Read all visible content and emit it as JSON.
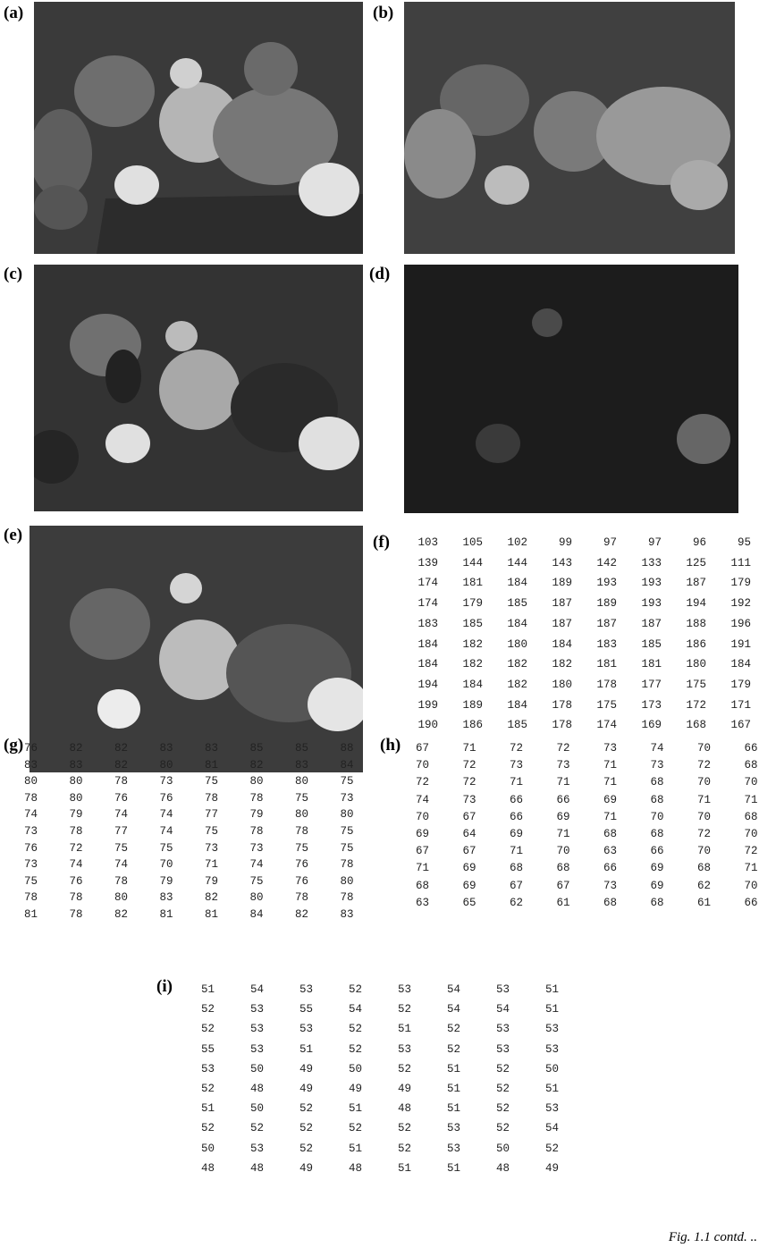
{
  "panels": [
    {
      "label": "(a)"
    },
    {
      "label": "(b)"
    },
    {
      "label": "(c)"
    },
    {
      "label": "(d)"
    },
    {
      "label": "(e)"
    },
    {
      "label": "(f)",
      "rows": [
        [
          103,
          105,
          102,
          99,
          97,
          97,
          96,
          95
        ],
        [
          139,
          144,
          144,
          143,
          142,
          133,
          125,
          111
        ],
        [
          174,
          181,
          184,
          189,
          193,
          193,
          187,
          179
        ],
        [
          174,
          179,
          185,
          187,
          189,
          193,
          194,
          192
        ],
        [
          183,
          185,
          184,
          187,
          187,
          187,
          188,
          196
        ],
        [
          184,
          182,
          180,
          184,
          183,
          185,
          186,
          191
        ],
        [
          184,
          182,
          182,
          182,
          181,
          181,
          180,
          184
        ],
        [
          194,
          184,
          182,
          180,
          178,
          177,
          175,
          179
        ],
        [
          199,
          189,
          184,
          178,
          175,
          173,
          172,
          171
        ],
        [
          190,
          186,
          185,
          178,
          174,
          169,
          168,
          167
        ]
      ]
    },
    {
      "label": "(g)",
      "rows": [
        [
          76,
          82,
          82,
          83,
          83,
          85,
          85,
          88
        ],
        [
          83,
          83,
          82,
          80,
          81,
          82,
          83,
          84
        ],
        [
          80,
          80,
          78,
          73,
          75,
          80,
          80,
          75
        ],
        [
          78,
          80,
          76,
          76,
          78,
          78,
          75,
          73
        ],
        [
          74,
          79,
          74,
          74,
          77,
          79,
          80,
          80
        ],
        [
          73,
          78,
          77,
          74,
          75,
          78,
          78,
          75
        ],
        [
          76,
          72,
          75,
          75,
          73,
          73,
          75,
          75
        ],
        [
          73,
          74,
          74,
          70,
          71,
          74,
          76,
          78
        ],
        [
          75,
          76,
          78,
          79,
          79,
          75,
          76,
          80
        ],
        [
          78,
          78,
          80,
          83,
          82,
          80,
          78,
          78
        ],
        [
          81,
          78,
          82,
          81,
          81,
          84,
          82,
          83
        ]
      ]
    },
    {
      "label": "(h)",
      "rows": [
        [
          67,
          71,
          72,
          72,
          73,
          74,
          70,
          66
        ],
        [
          70,
          72,
          73,
          73,
          71,
          73,
          72,
          68
        ],
        [
          72,
          72,
          71,
          71,
          71,
          68,
          70,
          70
        ],
        [
          74,
          73,
          66,
          66,
          69,
          68,
          71,
          71
        ],
        [
          70,
          67,
          66,
          69,
          71,
          70,
          70,
          68
        ],
        [
          69,
          64,
          69,
          71,
          68,
          68,
          72,
          70
        ],
        [
          67,
          67,
          71,
          70,
          63,
          66,
          70,
          72
        ],
        [
          71,
          69,
          68,
          68,
          66,
          69,
          68,
          71
        ],
        [
          68,
          69,
          67,
          67,
          73,
          69,
          62,
          70
        ],
        [
          63,
          65,
          62,
          61,
          68,
          68,
          61,
          66
        ]
      ]
    },
    {
      "label": "(i)",
      "rows": [
        [
          51,
          54,
          53,
          52,
          53,
          54,
          53,
          51
        ],
        [
          52,
          53,
          55,
          54,
          52,
          54,
          54,
          51
        ],
        [
          52,
          53,
          53,
          52,
          51,
          52,
          53,
          53
        ],
        [
          55,
          53,
          51,
          52,
          53,
          52,
          53,
          53
        ],
        [
          53,
          50,
          49,
          50,
          52,
          51,
          52,
          50
        ],
        [
          52,
          48,
          49,
          49,
          49,
          51,
          52,
          51
        ],
        [
          51,
          50,
          52,
          51,
          48,
          51,
          52,
          53
        ],
        [
          52,
          52,
          52,
          52,
          52,
          53,
          52,
          54
        ],
        [
          50,
          53,
          52,
          51,
          52,
          53,
          50,
          52
        ],
        [
          48,
          48,
          49,
          48,
          51,
          51,
          48,
          49
        ]
      ]
    }
  ],
  "caption": "Fig. 1.1 contd. .."
}
